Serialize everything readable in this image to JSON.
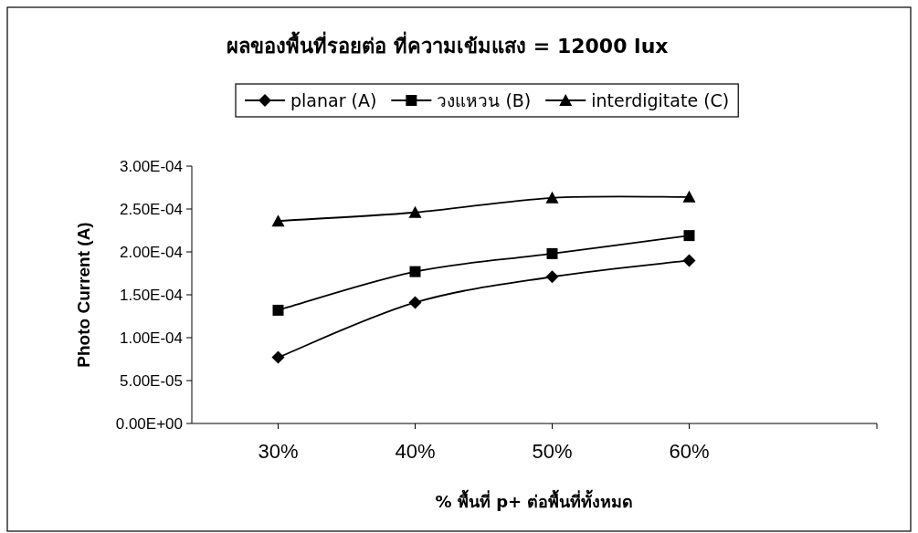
{
  "chart_data": {
    "type": "line",
    "title": "ผลของพื้นที่รอยต่อ ที่ความเข้มแสง = 12000 lux",
    "xlabel": "% พื้นที่ p+ ต่อพื้นที่ทั้งหมด",
    "ylabel": "Photo Current (A)",
    "x": [
      30,
      40,
      50,
      60
    ],
    "xlim": [
      23.7,
      73.7
    ],
    "xticks": [
      {
        "value": 30,
        "label": "30%"
      },
      {
        "value": 40,
        "label": "40%"
      },
      {
        "value": 50,
        "label": "50%"
      },
      {
        "value": 60,
        "label": "60%"
      }
    ],
    "ylim": [
      0,
      0.0003
    ],
    "yticks": [
      {
        "value": 0,
        "label": "0.00E+00"
      },
      {
        "value": 5e-05,
        "label": "5.00E-05"
      },
      {
        "value": 0.0001,
        "label": "1.00E-04"
      },
      {
        "value": 0.00015,
        "label": "1.50E-04"
      },
      {
        "value": 0.0002,
        "label": "2.00E-04"
      },
      {
        "value": 0.00025,
        "label": "2.50E-04"
      },
      {
        "value": 0.0003,
        "label": "3.00E-04"
      }
    ],
    "series": [
      {
        "name": "planar (A)",
        "color": "#000000",
        "marker": "diamond",
        "values": [
          7.7e-05,
          0.000141,
          0.000171,
          0.00019
        ]
      },
      {
        "name": "วงแหวน (B)",
        "color": "#000000",
        "marker": "square",
        "values": [
          0.000132,
          0.000177,
          0.000198,
          0.000219
        ]
      },
      {
        "name": "interdigitate (C)",
        "color": "#000000",
        "marker": "triangle",
        "values": [
          0.000236,
          0.000246,
          0.000263,
          0.000264
        ]
      }
    ],
    "legend": "top",
    "grid": false,
    "line_style": "solid"
  }
}
